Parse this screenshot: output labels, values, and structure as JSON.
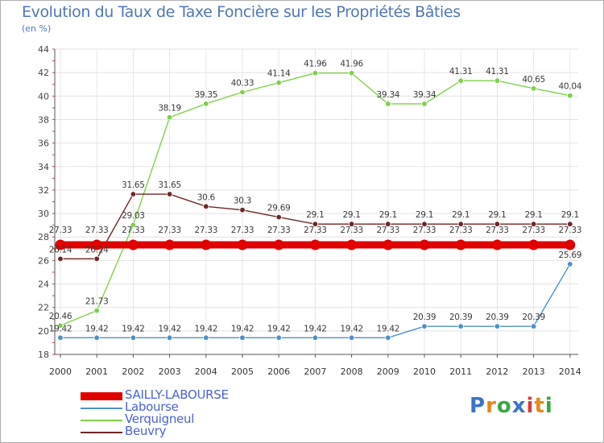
{
  "chart_data": {
    "type": "line",
    "title": "Evolution du Taux de Taxe Foncière sur les Propriétés Bâties",
    "unit_label": "(en %)",
    "x": [
      "2000",
      "2001",
      "2002",
      "2003",
      "2004",
      "2005",
      "2006",
      "2007",
      "2008",
      "2009",
      "2010",
      "2011",
      "2012",
      "2013",
      "2014"
    ],
    "ylim": [
      18,
      44
    ],
    "yticks": [
      18,
      20,
      22,
      24,
      26,
      28,
      30,
      32,
      34,
      36,
      38,
      40,
      42,
      44
    ],
    "grid": true,
    "series": [
      {
        "name": "SAILLY-LABOURSE",
        "color": "#e00000",
        "values": [
          27.33,
          27.33,
          27.33,
          27.33,
          27.33,
          27.33,
          27.33,
          27.33,
          27.33,
          27.33,
          27.33,
          27.33,
          27.33,
          27.33,
          27.33
        ],
        "labels": [
          "27.33",
          "27.33",
          "27.33",
          "27.33",
          "27.33",
          "27.33",
          "27.33",
          "27.33",
          "27.33",
          "27.33",
          "27.33",
          "27.33",
          "27.33",
          "27.33",
          "27.33"
        ]
      },
      {
        "name": "Labourse",
        "color": "#4f8fc9",
        "values": [
          19.42,
          19.42,
          19.42,
          19.42,
          19.42,
          19.42,
          19.42,
          19.42,
          19.42,
          19.42,
          20.39,
          20.39,
          20.39,
          20.39,
          25.69
        ],
        "labels": [
          "19.42",
          "19.42",
          "19.42",
          "19.42",
          "19.42",
          "19.42",
          "19.42",
          "19.42",
          "19.42",
          "19.42",
          "20.39",
          "20.39",
          "20.39",
          "20.39",
          "25.69"
        ]
      },
      {
        "name": "Verquigneul",
        "color": "#7ed04a",
        "values": [
          20.46,
          21.73,
          29.03,
          38.19,
          39.35,
          40.33,
          41.14,
          41.96,
          41.96,
          39.34,
          39.34,
          41.31,
          41.31,
          40.65,
          40.04
        ],
        "labels": [
          "20.46",
          "21.73",
          "29.03",
          "38.19",
          "39.35",
          "40.33",
          "41.14",
          "41.96",
          "41.96",
          "39.34",
          "39.34",
          "41.31",
          "41.31",
          "40.65",
          "40.04"
        ]
      },
      {
        "name": "Beuvry",
        "color": "#6e2626",
        "values": [
          26.14,
          26.14,
          31.65,
          31.65,
          30.6,
          30.3,
          29.69,
          29.1,
          29.1,
          29.1,
          29.1,
          29.1,
          29.1,
          29.1,
          29.1
        ],
        "labels": [
          "26.14",
          "26.14",
          "31.65",
          "31.65",
          "30.6",
          "30.3",
          "29.69",
          "29.1",
          "29.1",
          "29.1",
          "29.1",
          "29.1",
          "29.1",
          "29.1",
          "29.1"
        ]
      }
    ]
  },
  "logo": {
    "text": "Proxiti",
    "letter_colors": [
      "#3a74c8",
      "#e8871a",
      "#3aa646",
      "#3a74c8",
      "#d83a3a",
      "#e8871a",
      "#3aa646"
    ]
  }
}
